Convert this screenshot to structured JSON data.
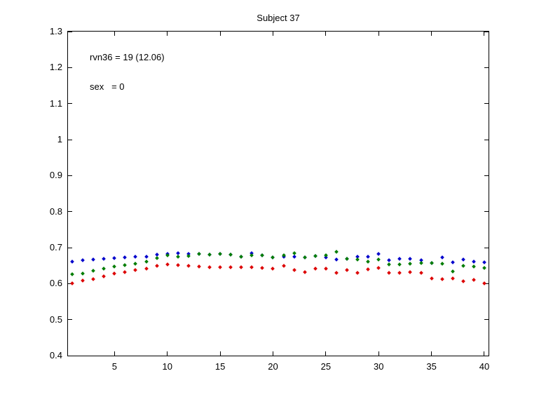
{
  "figure": {
    "background": "#ffffff"
  },
  "chart_data": {
    "type": "scatter",
    "title": "Subject 37",
    "xlabel": "",
    "ylabel": "",
    "grid": false,
    "legend": null,
    "annotations": [
      "rvn36 = 19 (12.06)",
      "sex   = 0"
    ],
    "xlim": [
      0.6,
      40.4
    ],
    "ylim": [
      0.4,
      1.3
    ],
    "xticks": [
      5,
      10,
      15,
      20,
      25,
      30,
      35,
      40
    ],
    "yticks": [
      0.4,
      0.5,
      0.6,
      0.7,
      0.8,
      0.9,
      1,
      1.1,
      1.2,
      1.3
    ],
    "x": [
      1,
      2,
      3,
      4,
      5,
      6,
      7,
      8,
      9,
      10,
      11,
      12,
      13,
      14,
      15,
      16,
      17,
      18,
      19,
      20,
      21,
      22,
      23,
      24,
      25,
      26,
      27,
      28,
      29,
      30,
      31,
      32,
      33,
      34,
      35,
      36,
      37,
      38,
      39,
      40
    ],
    "series": [
      {
        "name": "series-blue",
        "color": "#0000cc",
        "values": [
          0.662,
          0.664,
          0.666,
          0.668,
          0.67,
          0.672,
          0.674,
          0.674,
          0.681,
          0.682,
          0.684,
          0.682,
          0.682,
          0.68,
          0.682,
          0.681,
          0.675,
          0.684,
          0.678,
          0.673,
          0.674,
          0.674,
          0.673,
          0.676,
          0.672,
          0.666,
          0.668,
          0.675,
          0.675,
          0.682,
          0.665,
          0.668,
          0.668,
          0.665,
          0.658,
          0.673,
          0.659,
          0.667,
          0.662,
          0.659
        ]
      },
      {
        "name": "series-green",
        "color": "#007d00",
        "values": [
          0.626,
          0.628,
          0.636,
          0.641,
          0.647,
          0.651,
          0.656,
          0.662,
          0.671,
          0.678,
          0.674,
          0.676,
          0.682,
          0.68,
          0.682,
          0.681,
          0.675,
          0.678,
          0.678,
          0.673,
          0.678,
          0.684,
          0.673,
          0.676,
          0.679,
          0.689,
          0.668,
          0.666,
          0.661,
          0.666,
          0.653,
          0.654,
          0.655,
          0.658,
          0.658,
          0.656,
          0.634,
          0.65,
          0.648,
          0.644
        ]
      },
      {
        "name": "series-red",
        "color": "#dd0000",
        "values": [
          0.6,
          0.609,
          0.613,
          0.621,
          0.627,
          0.632,
          0.637,
          0.641,
          0.65,
          0.654,
          0.651,
          0.65,
          0.648,
          0.646,
          0.646,
          0.645,
          0.645,
          0.646,
          0.643,
          0.641,
          0.65,
          0.637,
          0.632,
          0.642,
          0.641,
          0.629,
          0.637,
          0.629,
          0.639,
          0.644,
          0.629,
          0.63,
          0.632,
          0.629,
          0.615,
          0.612,
          0.615,
          0.606,
          0.61,
          0.6
        ]
      }
    ]
  }
}
